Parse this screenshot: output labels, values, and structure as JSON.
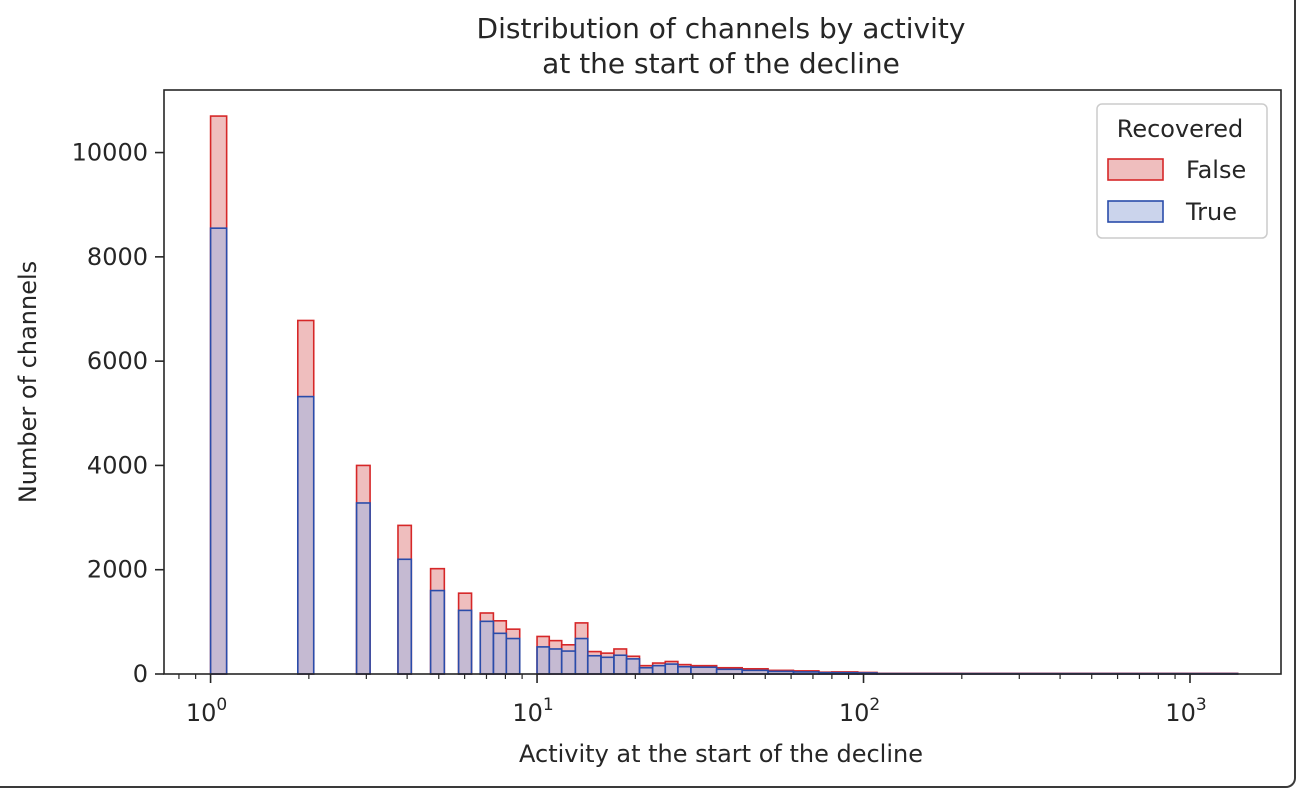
{
  "chart_data": {
    "type": "histogram",
    "title": [
      "Distribution of channels by activity",
      "at the start of the decline"
    ],
    "xlabel": "Activity at the start of the decline",
    "ylabel": "Number of channels",
    "xscale": "log",
    "xlim": [
      0.72,
      1900
    ],
    "ylim": [
      0,
      11200
    ],
    "xticks": [
      {
        "base": "10",
        "exp": "0",
        "value": 1
      },
      {
        "base": "10",
        "exp": "1",
        "value": 10
      },
      {
        "base": "10",
        "exp": "2",
        "value": 100
      },
      {
        "base": "10",
        "exp": "3",
        "value": 1000
      }
    ],
    "yticks": [
      0,
      2000,
      4000,
      6000,
      8000,
      10000
    ],
    "grid": false,
    "legend": {
      "title": "Recovered",
      "position": "top-right"
    },
    "series": [
      {
        "name": "False",
        "edge_color": "#d62728",
        "fill_color": "#e9a8a8",
        "bins": [
          [
            1.0,
            1.12,
            10700
          ],
          [
            1.85,
            2.07,
            6780
          ],
          [
            2.8,
            3.08,
            4000
          ],
          [
            3.75,
            4.12,
            2850
          ],
          [
            4.72,
            5.2,
            2020
          ],
          [
            5.75,
            6.3,
            1550
          ],
          [
            6.7,
            7.35,
            1170
          ],
          [
            7.35,
            8.05,
            1020
          ],
          [
            8.05,
            8.85,
            860
          ],
          [
            10.0,
            10.9,
            720
          ],
          [
            10.9,
            11.9,
            640
          ],
          [
            11.9,
            13.1,
            560
          ],
          [
            13.1,
            14.3,
            980
          ],
          [
            14.3,
            15.7,
            430
          ],
          [
            15.7,
            17.2,
            400
          ],
          [
            17.2,
            18.8,
            480
          ],
          [
            18.8,
            20.6,
            340
          ],
          [
            20.6,
            22.6,
            160
          ],
          [
            22.6,
            24.7,
            210
          ],
          [
            24.7,
            27.0,
            240
          ],
          [
            27.0,
            29.6,
            180
          ],
          [
            29.6,
            35.5,
            160
          ],
          [
            35.5,
            42.5,
            120
          ],
          [
            42.5,
            51.0,
            100
          ],
          [
            51.0,
            61.0,
            70
          ],
          [
            61.0,
            73.0,
            60
          ],
          [
            73.0,
            80.0,
            35
          ],
          [
            80.0,
            96.0,
            40
          ],
          [
            96.0,
            110.0,
            30
          ],
          [
            110.0,
            1400.0,
            12
          ]
        ]
      },
      {
        "name": "True",
        "edge_color": "#2a4caa",
        "fill_color": "#a8b8e0",
        "bins": [
          [
            1.0,
            1.12,
            8550
          ],
          [
            1.85,
            2.07,
            5320
          ],
          [
            2.8,
            3.08,
            3280
          ],
          [
            3.75,
            4.12,
            2200
          ],
          [
            4.72,
            5.2,
            1600
          ],
          [
            5.75,
            6.3,
            1220
          ],
          [
            6.7,
            7.35,
            1010
          ],
          [
            7.35,
            8.05,
            780
          ],
          [
            8.05,
            8.85,
            680
          ],
          [
            10.0,
            10.9,
            520
          ],
          [
            10.9,
            11.9,
            480
          ],
          [
            11.9,
            13.1,
            440
          ],
          [
            13.1,
            14.3,
            680
          ],
          [
            14.3,
            15.7,
            350
          ],
          [
            15.7,
            17.2,
            320
          ],
          [
            17.2,
            18.8,
            360
          ],
          [
            18.8,
            20.6,
            290
          ],
          [
            20.6,
            22.6,
            120
          ],
          [
            22.6,
            24.7,
            160
          ],
          [
            24.7,
            27.0,
            190
          ],
          [
            27.0,
            29.6,
            140
          ],
          [
            29.6,
            35.5,
            130
          ],
          [
            35.5,
            42.5,
            90
          ],
          [
            42.5,
            51.0,
            70
          ],
          [
            51.0,
            61.0,
            50
          ],
          [
            61.0,
            73.0,
            40
          ],
          [
            73.0,
            80.0,
            25
          ],
          [
            80.0,
            96.0,
            25
          ],
          [
            96.0,
            110.0,
            20
          ],
          [
            110.0,
            1400.0,
            8
          ]
        ]
      }
    ]
  }
}
